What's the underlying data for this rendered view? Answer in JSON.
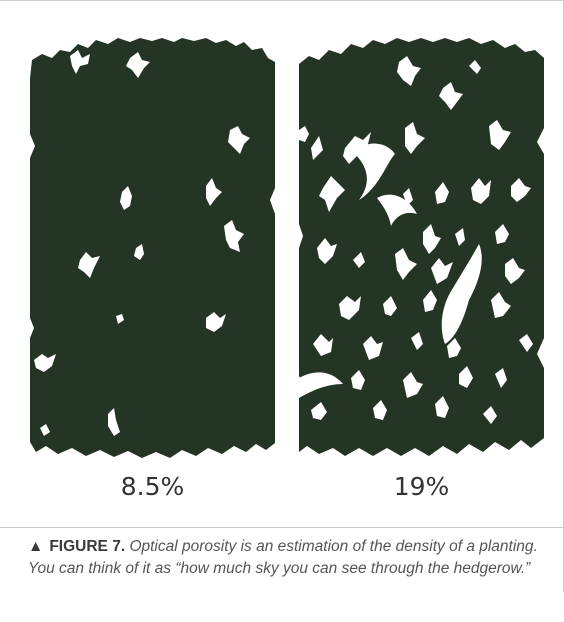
{
  "figure": {
    "panels": [
      {
        "porosity_label": "8.5%",
        "porosity_percent": 8.5
      },
      {
        "porosity_label": "19%",
        "porosity_percent": 19
      }
    ],
    "colors": {
      "foliage": "#253525",
      "sky": "#ffffff"
    },
    "caption": {
      "marker_icon": "triangle-up-icon",
      "marker": "▲",
      "label": "FIGURE 7.",
      "text": "Optical porosity is an estimation of the density of a planting. You can think of it as “how much sky you can see through the hedgerow.”"
    }
  }
}
